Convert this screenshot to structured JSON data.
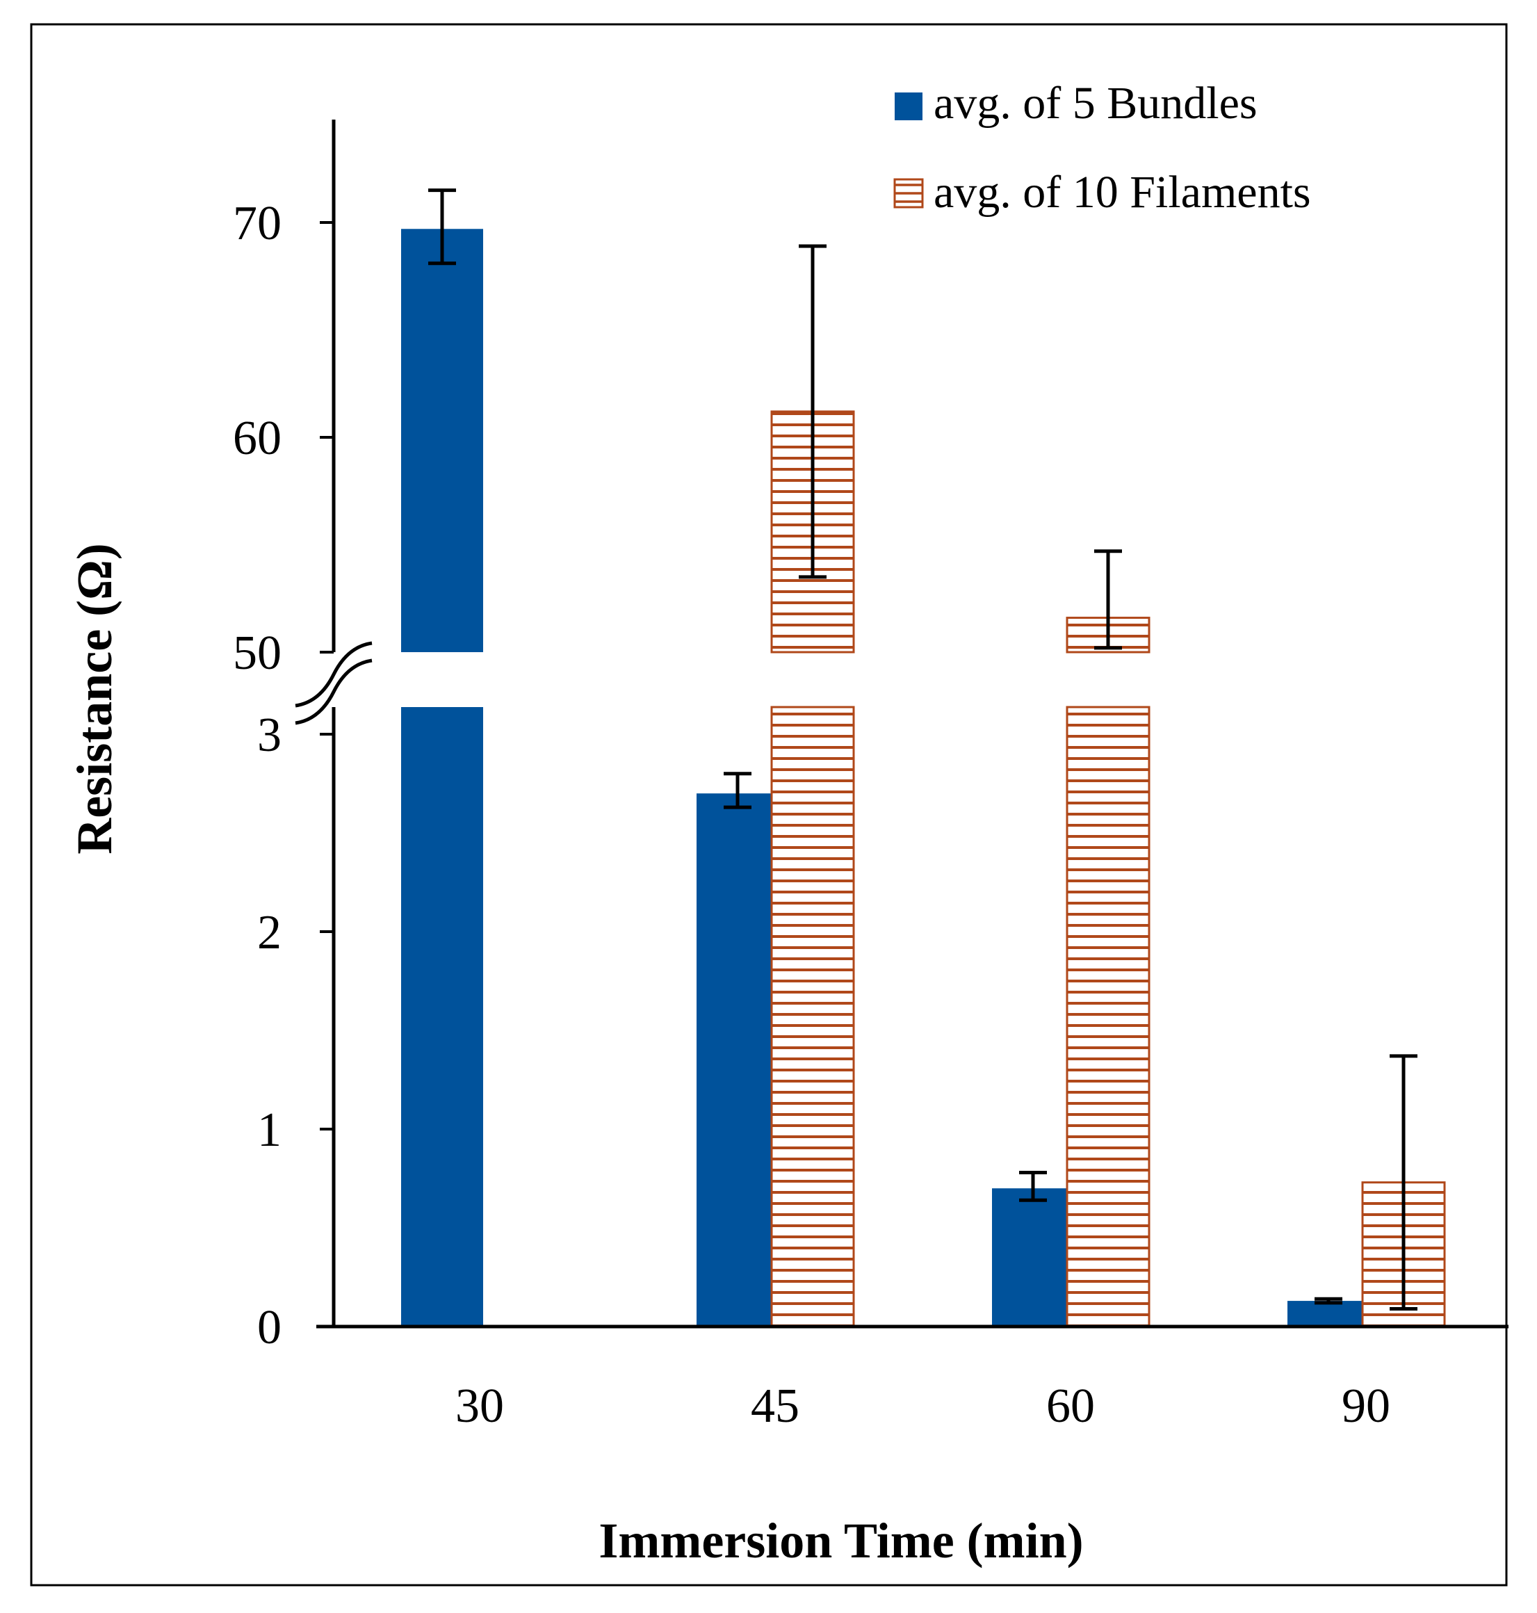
{
  "colors": {
    "bundles": "#00529B",
    "filaments_stroke": "#B0481A",
    "filaments_fill": "#ffffff",
    "axis": "#000000",
    "frame": "#000000"
  },
  "chart_data": {
    "type": "bar",
    "title": "",
    "xlabel": "Immersion Time (min)",
    "ylabel": "Resistance (Ω)",
    "categories": [
      "30",
      "45",
      "60",
      "90"
    ],
    "broken_y_axis": {
      "lower_range": [
        0,
        3
      ],
      "upper_range": [
        50,
        75
      ],
      "lower_ticks": [
        "0",
        "1",
        "2",
        "3"
      ],
      "upper_ticks": [
        "50",
        "60",
        "70"
      ]
    },
    "legend_position": "top-right",
    "series": [
      {
        "name": "avg. of 5 Bundles",
        "fill": "solid",
        "values": [
          69.7,
          2.7,
          0.7,
          0.13
        ],
        "error": [
          [
            68.1,
            71.5
          ],
          [
            2.63,
            2.8
          ],
          [
            0.64,
            0.78
          ],
          [
            0.12,
            0.14
          ]
        ]
      },
      {
        "name": "avg. of 10 Filaments",
        "fill": "horizontal-hatch",
        "values": [
          null,
          61.2,
          51.6,
          0.73
        ],
        "error": [
          null,
          [
            53.5,
            68.9
          ],
          [
            50.2,
            54.7
          ],
          [
            0.09,
            1.37
          ]
        ]
      }
    ]
  }
}
